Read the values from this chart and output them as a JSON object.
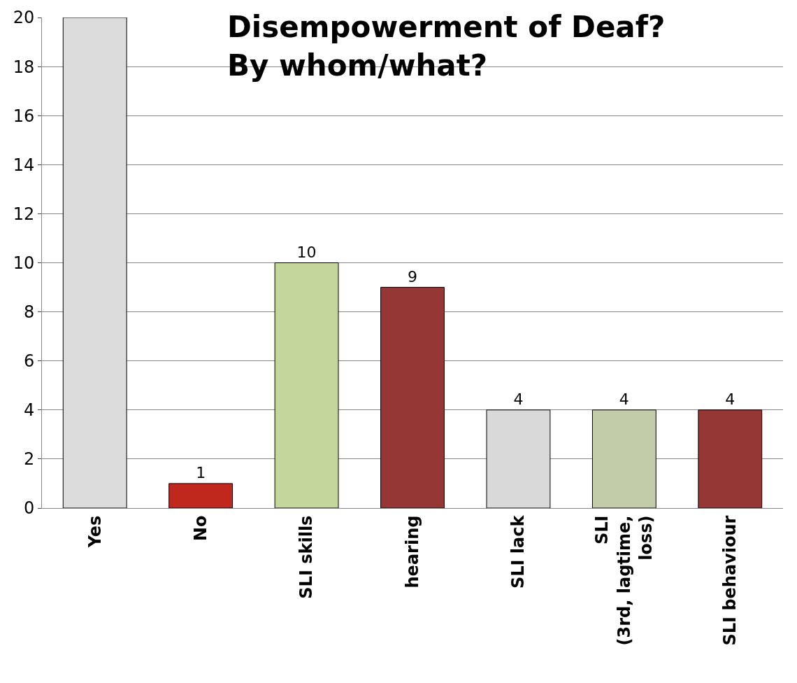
{
  "chart_data": {
    "type": "bar",
    "title": "Disempowerment of Deaf?\nBy whom/what?",
    "categories": [
      "Yes",
      "No",
      "SLI skills",
      "hearing",
      "SLI lack",
      "SLI\n(3rd, lagtime,\nloss)",
      "SLI behaviour"
    ],
    "values": [
      20,
      1,
      10,
      9,
      4,
      4,
      4
    ],
    "value_labels": [
      null,
      "1",
      "10",
      "9",
      "4",
      "4",
      "4"
    ],
    "colors": [
      "#dcdcdc",
      "#c0281e",
      "#c3d69b",
      "#953735",
      "#d9d9d9",
      "#c2cca9",
      "#953735"
    ],
    "ylim": [
      0,
      20
    ],
    "yticks": [
      0,
      2,
      4,
      6,
      8,
      10,
      12,
      14,
      16,
      18,
      20
    ],
    "grid": "y"
  }
}
